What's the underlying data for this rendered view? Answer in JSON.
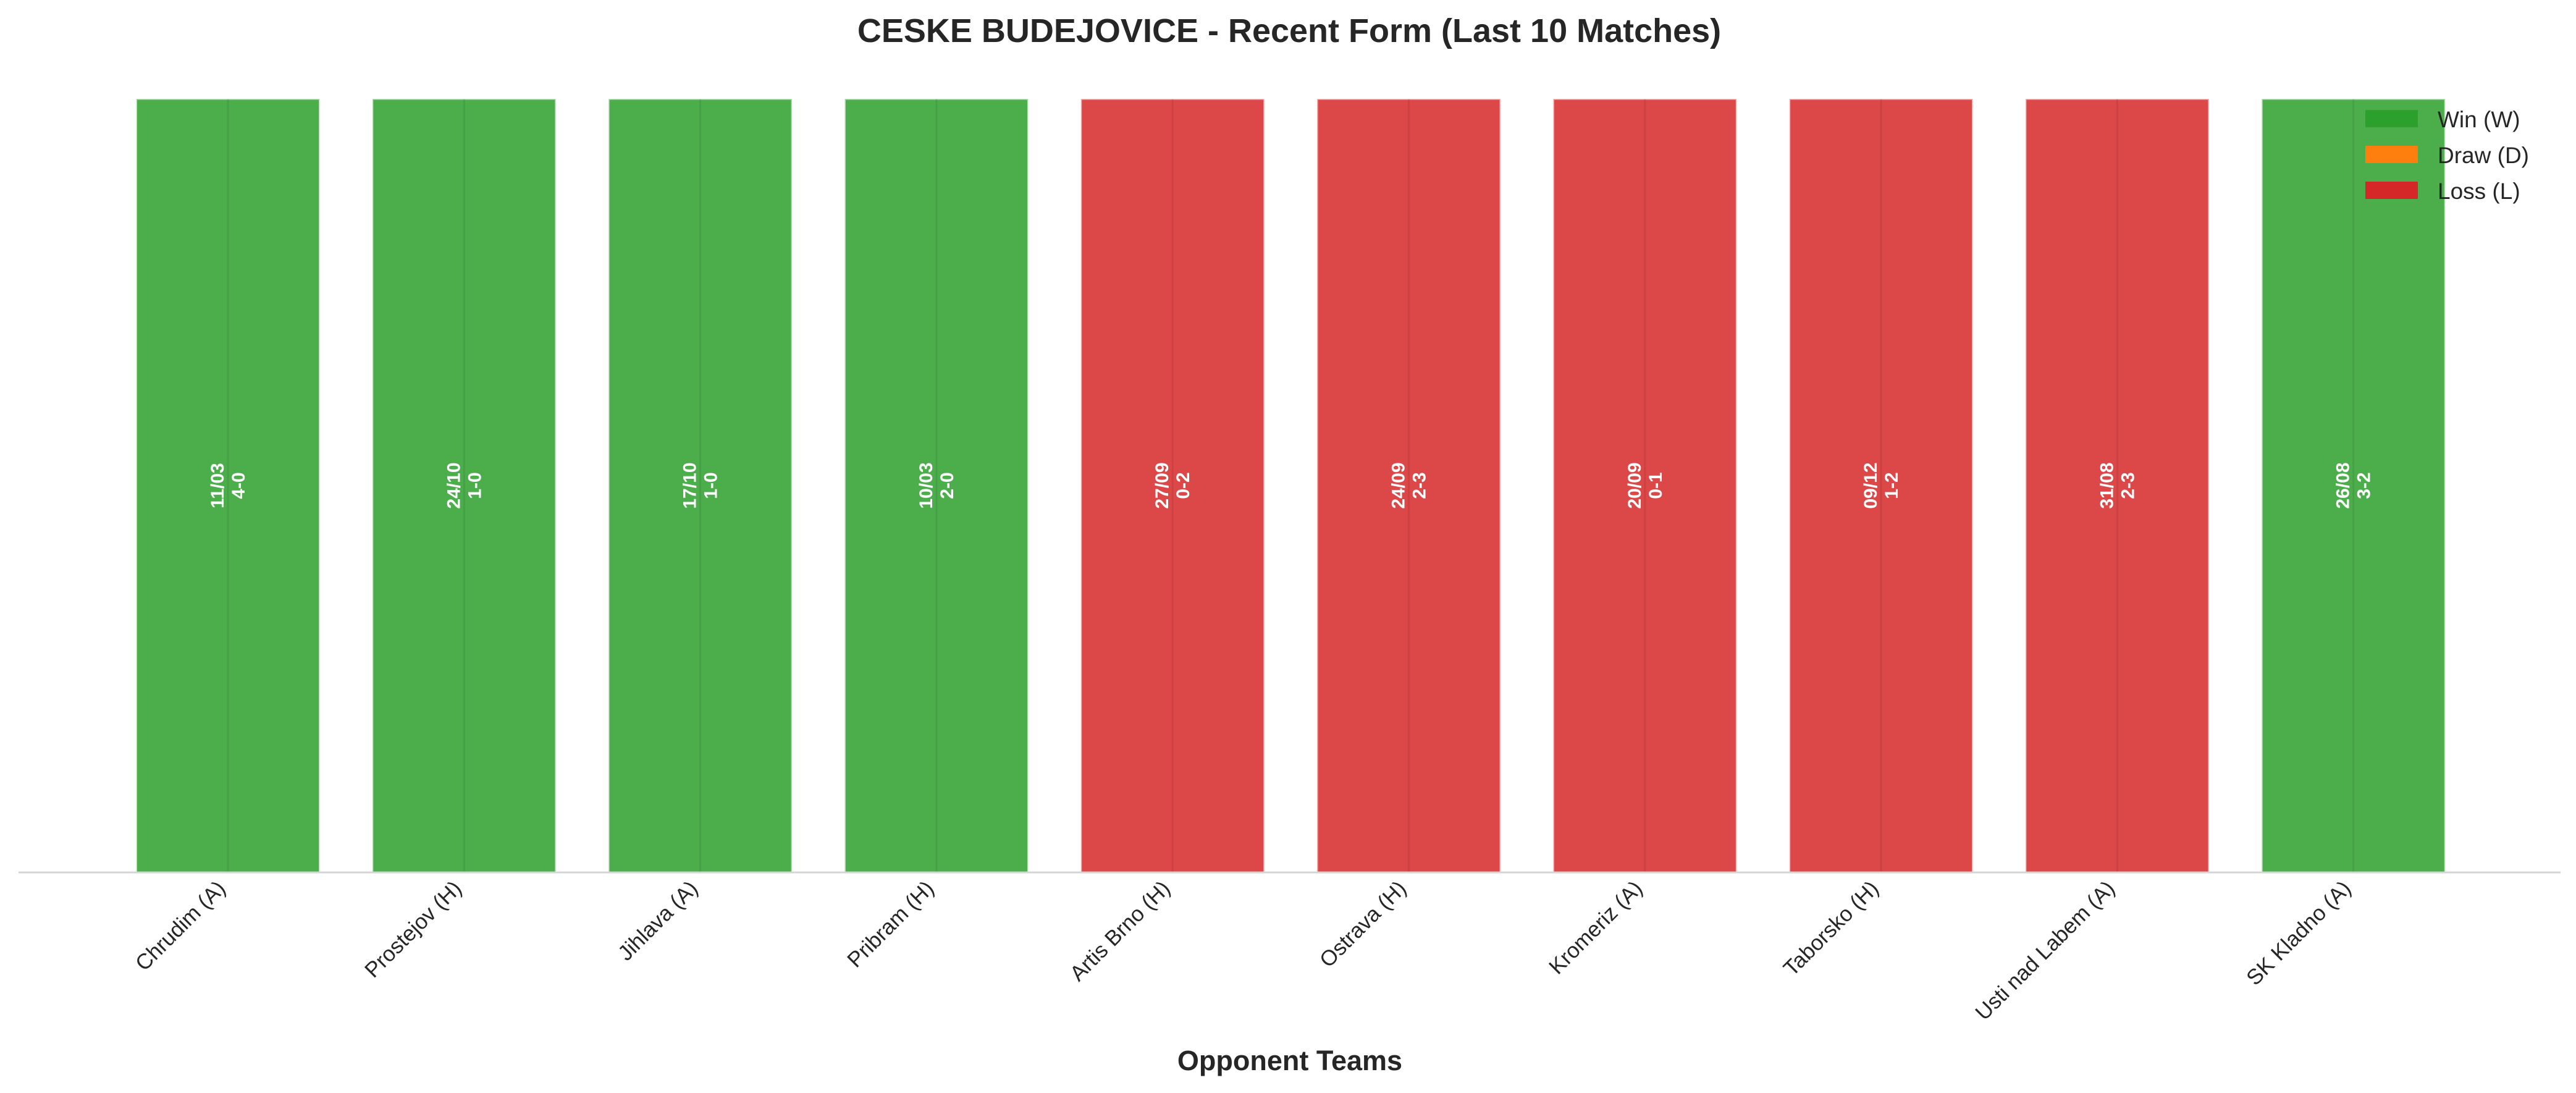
{
  "chart_data": {
    "type": "bar",
    "title": "CESKE BUDEJOVICE - Recent Form (Last 10 Matches)",
    "xlabel": "Opponent Teams",
    "ylabel": "",
    "categories": [
      "Chrudim (A)",
      "Prostejov (H)",
      "Jihlava (A)",
      "Pribram (H)",
      "Artis Brno (H)",
      "Ostrava (H)",
      "Kromeriz (A)",
      "Taborsko (H)",
      "Usti nad Labem (A)",
      "SK Kladno (A)"
    ],
    "values": [
      1,
      1,
      1,
      1,
      1,
      1,
      1,
      1,
      1,
      1
    ],
    "ylim": [
      0,
      1
    ],
    "results": [
      "W",
      "W",
      "W",
      "W",
      "L",
      "L",
      "L",
      "L",
      "L",
      "W"
    ],
    "dates": [
      "11/03",
      "24/10",
      "17/10",
      "10/03",
      "27/09",
      "24/09",
      "20/09",
      "09/12",
      "31/08",
      "26/08"
    ],
    "scores": [
      "4-0",
      "1-0",
      "1-0",
      "2-0",
      "0-2",
      "2-3",
      "0-1",
      "1-2",
      "2-3",
      "3-2"
    ],
    "legend": {
      "position": "top-right",
      "entries": [
        {
          "key": "W",
          "label": "Win (W)",
          "color": "#2ca02c"
        },
        {
          "key": "D",
          "label": "Draw (D)",
          "color": "#ff7f0e"
        },
        {
          "key": "L",
          "label": "Loss (L)",
          "color": "#d62728"
        }
      ]
    },
    "grid": true
  }
}
